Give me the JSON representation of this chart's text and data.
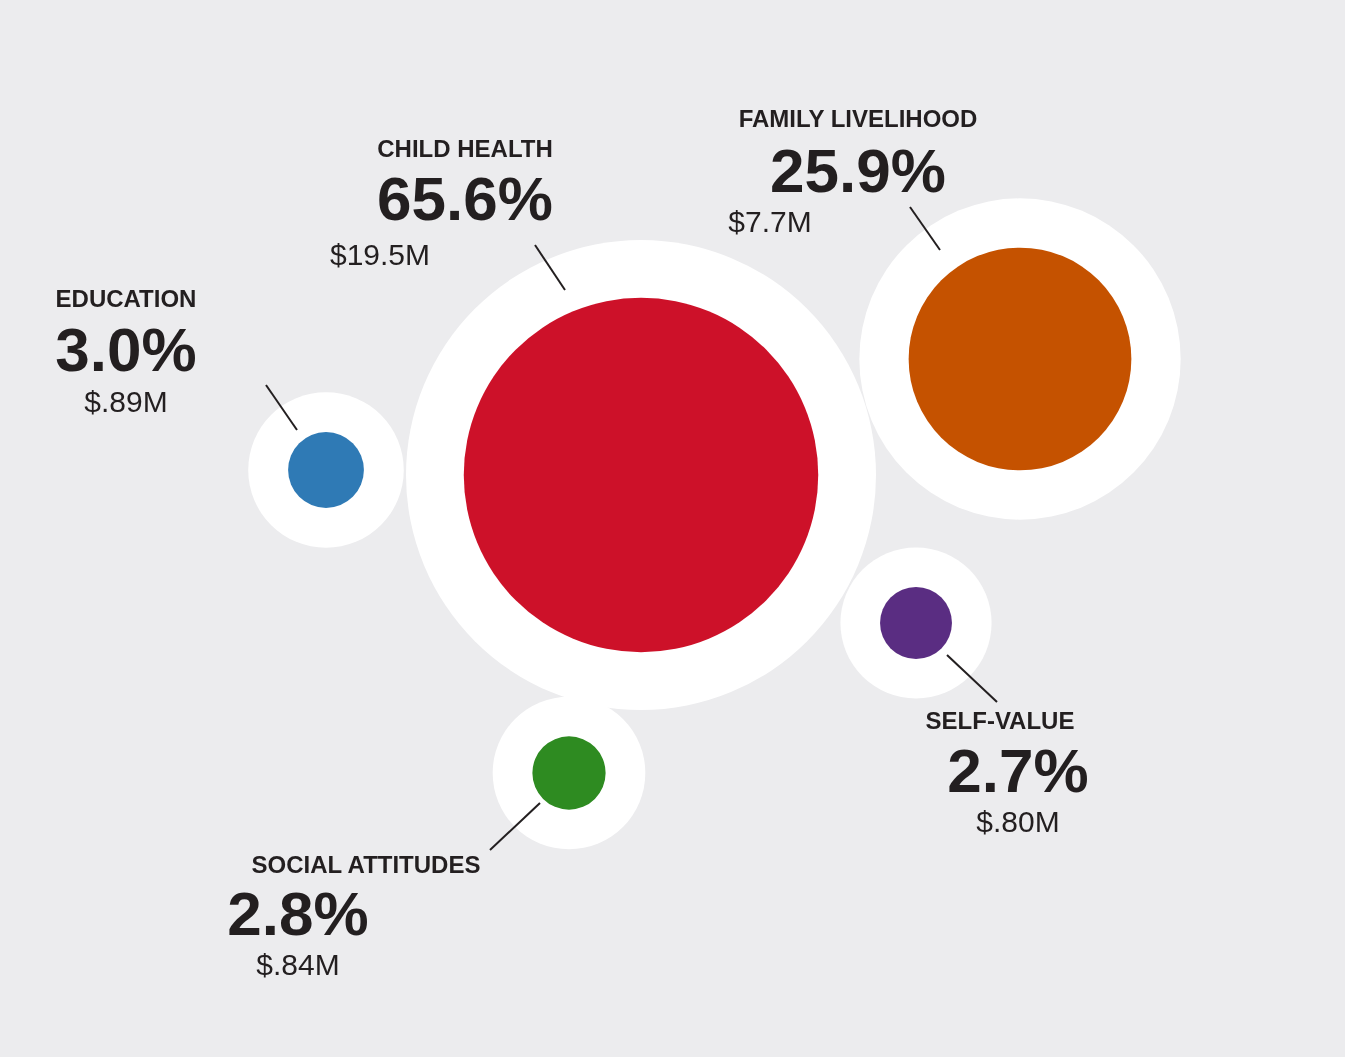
{
  "chart_data": {
    "type": "other",
    "categories": [
      "CHILD HEALTH",
      "FAMILY LIVELIHOOD",
      "EDUCATION",
      "SELF-VALUE",
      "SOCIAL ATTITUDES"
    ],
    "values": [
      65.6,
      25.9,
      3.0,
      2.7,
      2.8
    ],
    "value_labels": [
      "65.6%",
      "25.9%",
      "3.0%",
      "2.7%",
      "2.8%"
    ],
    "colors": [
      "#cd1129",
      "#c55200",
      "#2f7ab5",
      "#5a2d82",
      "#2e8b21"
    ],
    "annotations": [
      "$19.5M",
      "$7.7M",
      "$.89M",
      "$.80M",
      "$.84M"
    ]
  }
}
